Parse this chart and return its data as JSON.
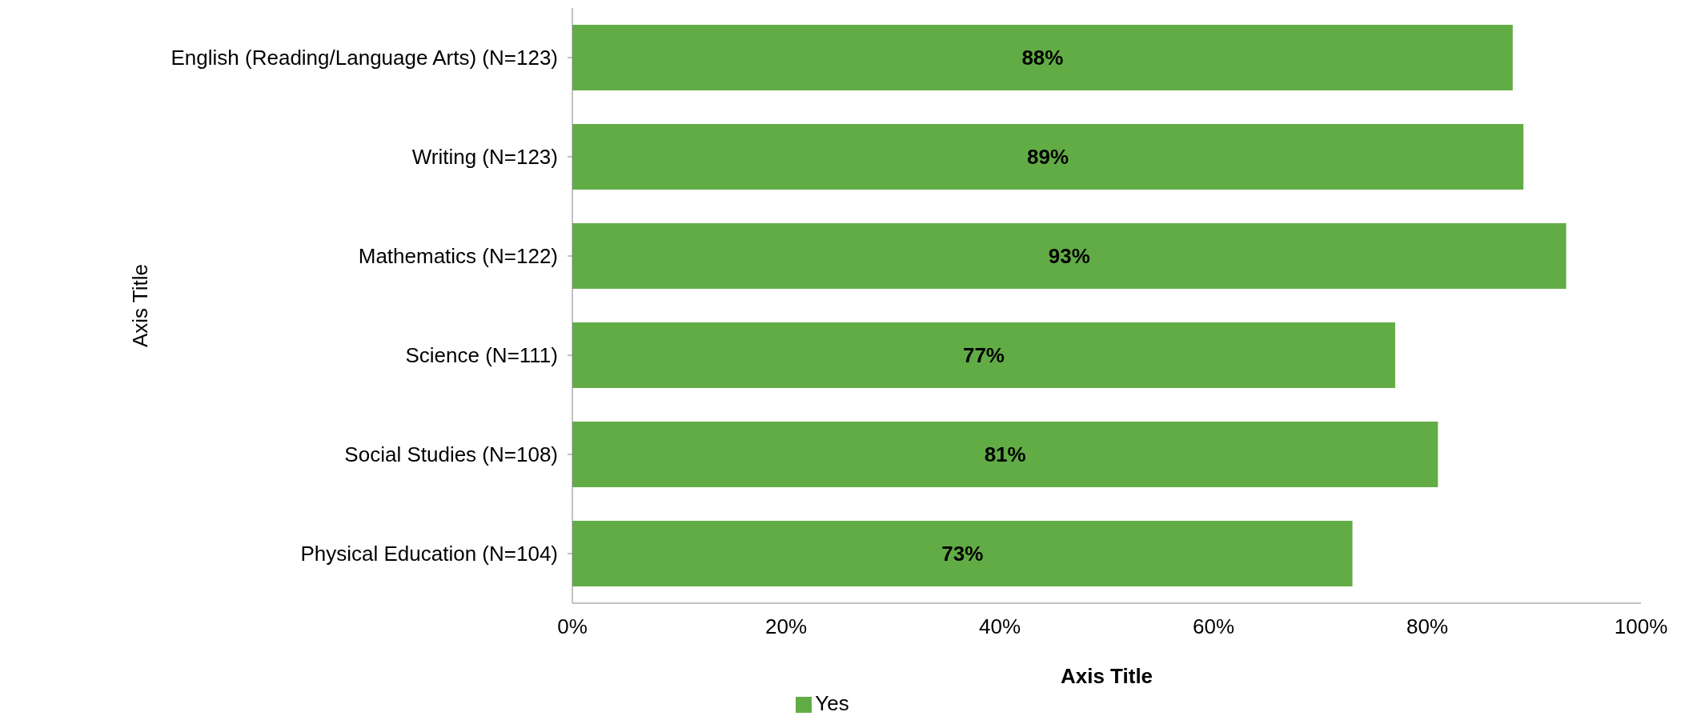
{
  "chart_data": {
    "type": "bar",
    "orientation": "horizontal",
    "xlabel": "Axis Title",
    "ylabel": "Axis Title",
    "categories": [
      "English (Reading/Language Arts) (N=123)",
      "Writing (N=123)",
      "Mathematics (N=122)",
      "Science (N=111)",
      "Social Studies (N=108)",
      "Physical Education (N=104)"
    ],
    "series": [
      {
        "name": "Yes",
        "color": "#62ac46",
        "values": [
          88,
          89,
          93,
          77,
          81,
          73
        ],
        "value_labels": [
          "88%",
          "89%",
          "93%",
          "77%",
          "81%",
          "73%"
        ]
      }
    ],
    "xlim": [
      0,
      100
    ],
    "xticks": [
      {
        "value": 0,
        "label": "0%"
      },
      {
        "value": 20,
        "label": "20%"
      },
      {
        "value": 40,
        "label": "40%"
      },
      {
        "value": 60,
        "label": "60%"
      },
      {
        "value": 80,
        "label": "80%"
      },
      {
        "value": 100,
        "label": "100%"
      }
    ],
    "grid": false,
    "legend": "bottom"
  }
}
